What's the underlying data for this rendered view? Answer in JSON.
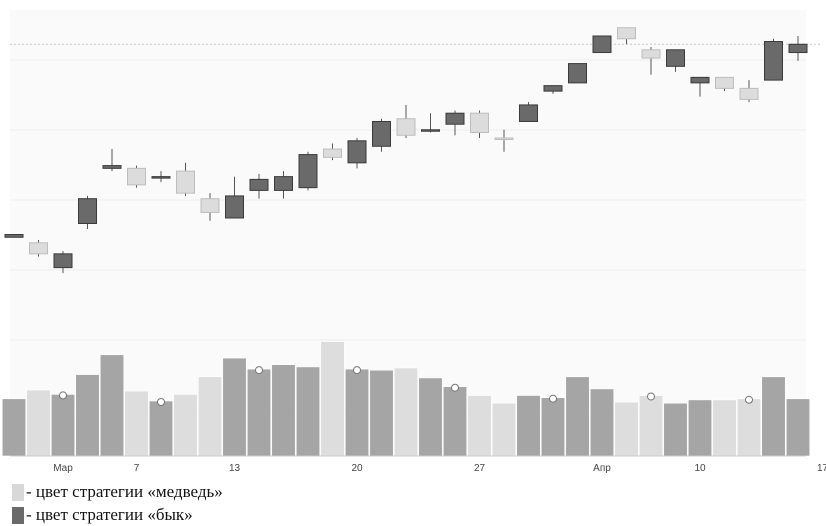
{
  "chart_data": {
    "type": "candlestick",
    "title": "",
    "xlabel": "",
    "ylabel": "",
    "grid": true,
    "reference_line": 100,
    "price_range": [
      0,
      103
    ],
    "volume_range": [
      0,
      100
    ],
    "x_ticks": [
      {
        "label": "Мар",
        "index": 2
      },
      {
        "label": "7",
        "index": 5
      },
      {
        "label": "13",
        "index": 9
      },
      {
        "label": "20",
        "index": 14
      },
      {
        "label": "27",
        "index": 19
      },
      {
        "label": "Апр",
        "index": 24
      },
      {
        "label": "10",
        "index": 28
      },
      {
        "label": "17",
        "index": 33
      }
    ],
    "candles": [
      {
        "open": 31,
        "close": 30,
        "high": 31,
        "low": 30,
        "type": "bull"
      },
      {
        "open": 24,
        "close": 28,
        "high": 29,
        "low": 23,
        "type": "bear"
      },
      {
        "open": 24,
        "close": 19,
        "high": 25,
        "low": 17,
        "type": "bull"
      },
      {
        "open": 35,
        "close": 44,
        "high": 45,
        "low": 33,
        "type": "bull"
      },
      {
        "open": 56,
        "close": 55,
        "high": 62,
        "low": 54,
        "type": "bull"
      },
      {
        "open": 55,
        "close": 49,
        "high": 56,
        "low": 48,
        "type": "bear"
      },
      {
        "open": 52,
        "close": 52,
        "high": 54,
        "low": 50,
        "type": "bull"
      },
      {
        "open": 54,
        "close": 46,
        "high": 57,
        "low": 45,
        "type": "bear"
      },
      {
        "open": 44,
        "close": 39,
        "high": 46,
        "low": 36,
        "type": "bear"
      },
      {
        "open": 37,
        "close": 45,
        "high": 52,
        "low": 37,
        "type": "bull"
      },
      {
        "open": 47,
        "close": 51,
        "high": 53,
        "low": 44,
        "type": "bull"
      },
      {
        "open": 47,
        "close": 52,
        "high": 54,
        "low": 44,
        "type": "bull"
      },
      {
        "open": 48,
        "close": 60,
        "high": 61,
        "low": 47,
        "type": "bull"
      },
      {
        "open": 59,
        "close": 62,
        "high": 64,
        "low": 58,
        "type": "bear"
      },
      {
        "open": 57,
        "close": 65,
        "high": 66,
        "low": 55,
        "type": "bull"
      },
      {
        "open": 63,
        "close": 72,
        "high": 73,
        "low": 61,
        "type": "bull"
      },
      {
        "open": 73,
        "close": 67,
        "high": 78,
        "low": 66,
        "type": "bear"
      },
      {
        "open": 69,
        "close": 69,
        "high": 75,
        "low": 68,
        "type": "bull"
      },
      {
        "open": 71,
        "close": 75,
        "high": 76,
        "low": 67,
        "type": "bull"
      },
      {
        "open": 75,
        "close": 68,
        "high": 76,
        "low": 66,
        "type": "bear"
      },
      {
        "open": 66,
        "close": 66,
        "high": 69,
        "low": 61,
        "type": "bear"
      },
      {
        "open": 72,
        "close": 78,
        "high": 79,
        "low": 72,
        "type": "bull"
      },
      {
        "open": 83,
        "close": 85,
        "high": 85,
        "low": 82,
        "type": "bull"
      },
      {
        "open": 86,
        "close": 93,
        "high": 93,
        "low": 86,
        "type": "bull"
      },
      {
        "open": 97,
        "close": 103,
        "high": 103,
        "low": 97,
        "type": "bull"
      },
      {
        "open": 106,
        "close": 102,
        "high": 106,
        "low": 100,
        "type": "bear"
      },
      {
        "open": 98,
        "close": 95,
        "high": 99,
        "low": 89,
        "type": "bear"
      },
      {
        "open": 92,
        "close": 98,
        "high": 98,
        "low": 90,
        "type": "bull"
      },
      {
        "open": 88,
        "close": 86,
        "high": 88,
        "low": 81,
        "type": "bull"
      },
      {
        "open": 88,
        "close": 84,
        "high": 88,
        "low": 83,
        "type": "bear"
      },
      {
        "open": 84,
        "close": 80,
        "high": 87,
        "low": 79,
        "type": "bear"
      },
      {
        "open": 87,
        "close": 101,
        "high": 102,
        "low": 87,
        "type": "bull"
      },
      {
        "open": 100,
        "close": 97,
        "high": 103,
        "low": 94,
        "type": "bull"
      }
    ],
    "volume": [
      {
        "value": 52,
        "color": "dark"
      },
      {
        "value": 60,
        "color": "light"
      },
      {
        "value": 56,
        "color": "dark",
        "marker": true
      },
      {
        "value": 74,
        "color": "dark"
      },
      {
        "value": 92,
        "color": "dark"
      },
      {
        "value": 59,
        "color": "light"
      },
      {
        "value": 50,
        "color": "dark",
        "marker": true
      },
      {
        "value": 56,
        "color": "light"
      },
      {
        "value": 72,
        "color": "light"
      },
      {
        "value": 89,
        "color": "dark"
      },
      {
        "value": 79,
        "color": "dark",
        "marker": true
      },
      {
        "value": 83,
        "color": "dark"
      },
      {
        "value": 81,
        "color": "dark"
      },
      {
        "value": 104,
        "color": "light"
      },
      {
        "value": 79,
        "color": "dark",
        "marker": true
      },
      {
        "value": 78,
        "color": "dark"
      },
      {
        "value": 80,
        "color": "light"
      },
      {
        "value": 71,
        "color": "dark"
      },
      {
        "value": 63,
        "color": "dark",
        "marker": true
      },
      {
        "value": 55,
        "color": "light"
      },
      {
        "value": 48,
        "color": "light"
      },
      {
        "value": 55,
        "color": "dark"
      },
      {
        "value": 53,
        "color": "dark",
        "marker": true
      },
      {
        "value": 72,
        "color": "dark"
      },
      {
        "value": 61,
        "color": "dark"
      },
      {
        "value": 49,
        "color": "light"
      },
      {
        "value": 55,
        "color": "light",
        "marker": true
      },
      {
        "value": 48,
        "color": "dark"
      },
      {
        "value": 51,
        "color": "dark"
      },
      {
        "value": 51,
        "color": "light"
      },
      {
        "value": 52,
        "color": "light",
        "marker": true
      },
      {
        "value": 72,
        "color": "dark"
      },
      {
        "value": 52,
        "color": "dark"
      }
    ],
    "colors": {
      "bull": "#6a6a6a",
      "bull_border": "#3a3a3a",
      "bear": "#dcdcdc",
      "bear_border": "#bdbdbd",
      "wick": "#555555",
      "volume_dark": "#a5a5a5",
      "volume_light": "#dddddd",
      "grid": "#eeeeee",
      "reference_line": "#c8c8c8"
    }
  },
  "legend": {
    "bear_text": "- цвет стратегии «медведь»",
    "bull_text": "- цвет стратегии «бык»",
    "bear_color": "#d8d8d8",
    "bull_color": "#6a6a6a"
  }
}
